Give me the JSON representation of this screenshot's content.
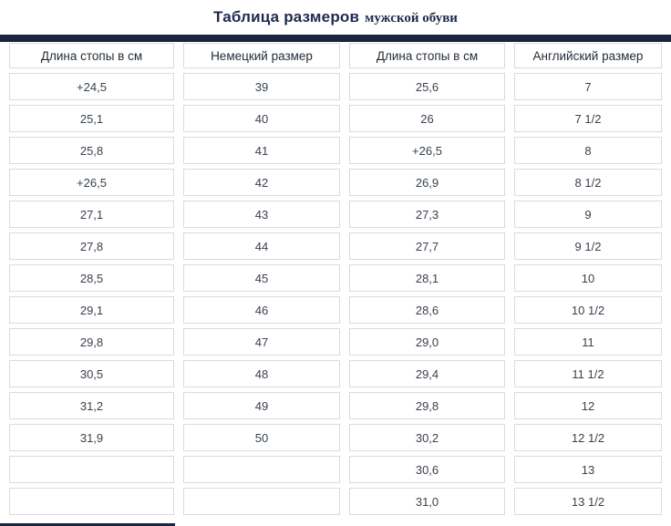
{
  "title": {
    "main": "Таблица размеров",
    "sub": "мужской обуви"
  },
  "table": {
    "headers": [
      "Длина стопы в см",
      "Немецкий размер",
      "Длина стопы в см",
      "Английский размер"
    ],
    "rows": [
      [
        "+24,5",
        "39",
        "25,6",
        "7"
      ],
      [
        "25,1",
        "40",
        "26",
        "7 1/2"
      ],
      [
        "25,8",
        "41",
        "+26,5",
        "8"
      ],
      [
        "+26,5",
        "42",
        "26,9",
        "8 1/2"
      ],
      [
        "27,1",
        "43",
        "27,3",
        "9"
      ],
      [
        "27,8",
        "44",
        "27,7",
        "9 1/2"
      ],
      [
        "28,5",
        "45",
        "28,1",
        "10"
      ],
      [
        "29,1",
        "46",
        "28,6",
        "10 1/2"
      ],
      [
        "29,8",
        "47",
        "29,0",
        "11"
      ],
      [
        "30,5",
        "48",
        "29,4",
        "11 1/2"
      ],
      [
        "31,2",
        "49",
        "29,8",
        "12"
      ],
      [
        "31,9",
        "50",
        "30,2",
        "12 1/2"
      ],
      [
        "",
        "",
        "30,6",
        "13"
      ],
      [
        "",
        "",
        "31,0",
        "13 1/2"
      ]
    ]
  },
  "colors": {
    "divider_bar": "#17253f",
    "cell_border": "#d8dbe0",
    "header_text": "#242d38",
    "body_text": "#3a424c",
    "title_text": "#1c2b4e",
    "background": "#ffffff"
  }
}
